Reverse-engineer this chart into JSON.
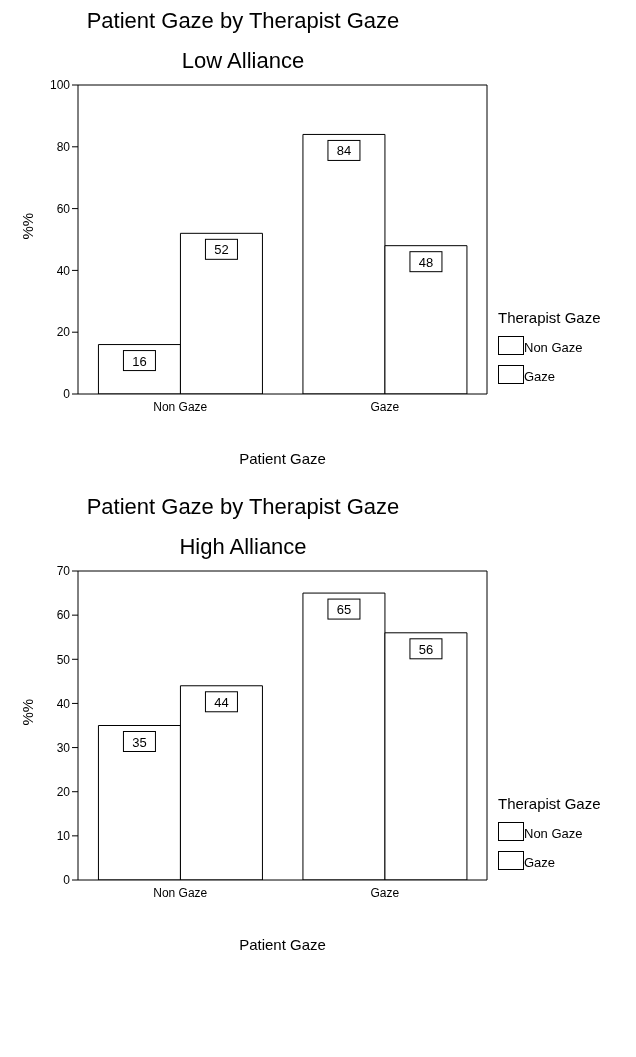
{
  "chart_data": [
    {
      "type": "bar",
      "title": "Patient Gaze by Therapist Gaze",
      "subtitle": "Low Alliance",
      "xlabel": "Patient Gaze",
      "ylabel": "%%",
      "legend_title": "Therapist Gaze",
      "categories": [
        "Non Gaze",
        "Gaze"
      ],
      "series": [
        {
          "name": "Non Gaze",
          "color": "#ffffff",
          "values": [
            16,
            84
          ]
        },
        {
          "name": "Gaze",
          "color": "#ffffff",
          "values": [
            52,
            48
          ]
        }
      ],
      "ylim": [
        0,
        100
      ],
      "yticks": [
        0,
        20,
        40,
        60,
        80,
        100
      ],
      "data_labels": true,
      "legend": "right",
      "grid": false
    },
    {
      "type": "bar",
      "title": "Patient Gaze by Therapist Gaze",
      "subtitle": "High Alliance",
      "xlabel": "Patient Gaze",
      "ylabel": "%%",
      "legend_title": "Therapist Gaze",
      "categories": [
        "Non Gaze",
        "Gaze"
      ],
      "series": [
        {
          "name": "Non Gaze",
          "color": "#ffffff",
          "values": [
            35,
            65
          ]
        },
        {
          "name": "Gaze",
          "color": "#ffffff",
          "values": [
            44,
            56
          ]
        }
      ],
      "ylim": [
        0,
        70
      ],
      "yticks": [
        0,
        10,
        20,
        30,
        40,
        50,
        60,
        70
      ],
      "data_labels": true,
      "legend": "right",
      "grid": false
    }
  ]
}
